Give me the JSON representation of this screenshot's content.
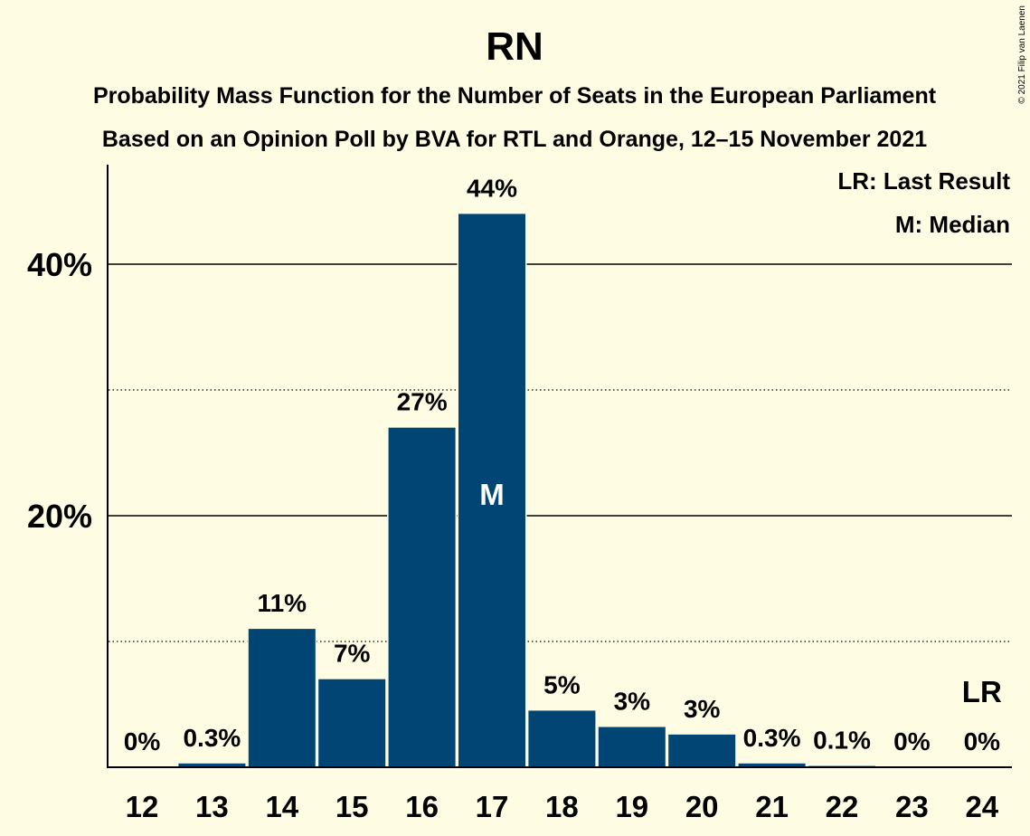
{
  "chart_data": {
    "type": "bar",
    "title": "RN",
    "subtitle_line1": "Probability Mass Function for the Number of Seats in the European Parliament",
    "subtitle_line2": "Based on an Opinion Poll by BVA for RTL and Orange, 12–15 November 2021",
    "copyright": "© 2021 Filip van Laenen",
    "categories": [
      "12",
      "13",
      "14",
      "15",
      "16",
      "17",
      "18",
      "19",
      "20",
      "21",
      "22",
      "23",
      "24"
    ],
    "values": [
      0,
      0.3,
      11,
      7,
      27,
      44,
      4.5,
      3.2,
      2.6,
      0.3,
      0.1,
      0,
      0
    ],
    "data_labels": [
      "0%",
      "0.3%",
      "11%",
      "7%",
      "27%",
      "44%",
      "5%",
      "3%",
      "3%",
      "0.3%",
      "0.1%",
      "0%",
      "0%"
    ],
    "y_ticks": [
      {
        "value": 20,
        "label": "20%"
      },
      {
        "value": 40,
        "label": "40%"
      }
    ],
    "y_minor_gridlines": [
      10,
      30
    ],
    "ylim": [
      0,
      48
    ],
    "median_category": "17",
    "median_marker": "M",
    "last_result_category": "24",
    "last_result_marker": "LR",
    "legend": {
      "position": "top-right",
      "items": [
        "LR: Last Result",
        "M: Median"
      ]
    },
    "colors": {
      "bar": "#004574",
      "background": "#FFFCE4",
      "text": "#000000",
      "marker_text": "#FFFFFF"
    }
  }
}
